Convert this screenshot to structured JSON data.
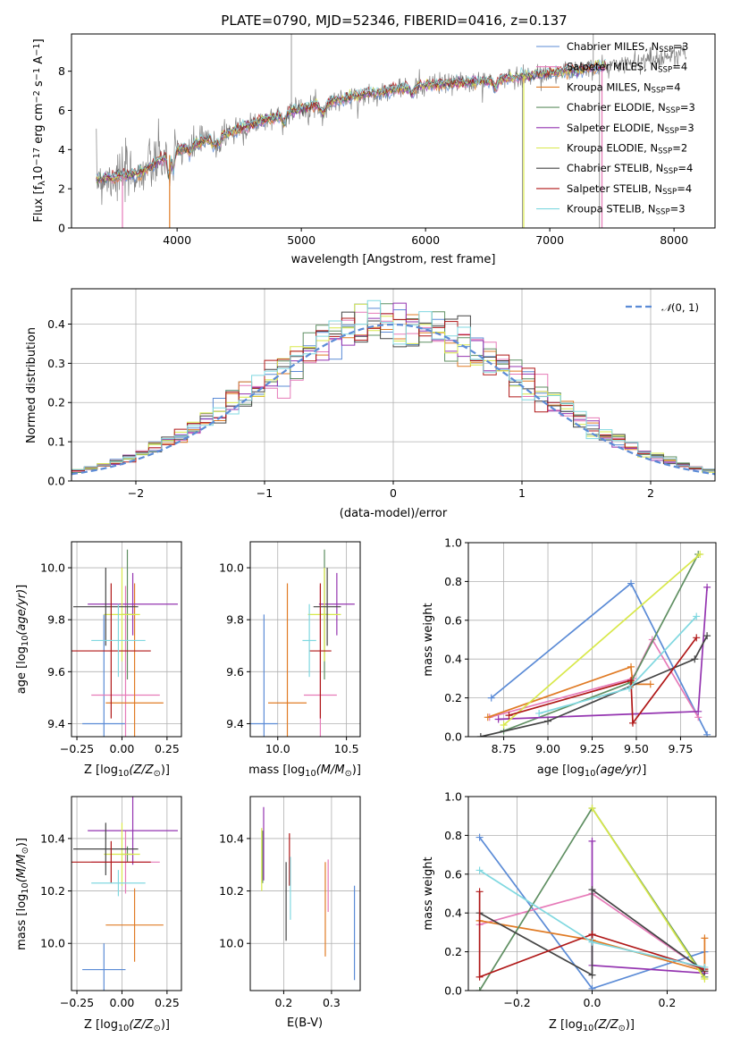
{
  "figure": {
    "title": "PLATE=0790, MJD=52346, FIBERID=0416, z=0.137"
  },
  "colors": {
    "Chabrier MILES": "#5b8bd6",
    "Salpeter MILES": "#e67ab8",
    "Kroupa MILES": "#e07b25",
    "Chabrier ELODIE": "#5f8f62",
    "Salpeter ELODIE": "#9434b0",
    "Kroupa ELODIE": "#d8e84a",
    "Chabrier STELIB": "#454545",
    "Salpeter STELIB": "#b01818",
    "Kroupa STELIB": "#80d8e0",
    "data": "#808080"
  },
  "chart_data": [
    {
      "id": "spectrum",
      "type": "line",
      "title": "PLATE=0790, MJD=52346, FIBERID=0416, z=0.137",
      "xlabel": "wavelength [Angstrom, rest frame]",
      "ylabel": "Flux [f_λ 10^-17 erg cm^-2 s^-1 A^-1]",
      "xlim": [
        3150,
        8330
      ],
      "ylim": [
        0,
        9.9
      ],
      "xticks": [
        4000,
        5000,
        6000,
        7000,
        8000
      ],
      "yticks": [
        0,
        2,
        4,
        6,
        8
      ],
      "legend": [
        "Chabrier MILES, N_SSP=3",
        "Salpeter MILES, N_SSP=4",
        "Kroupa MILES, N_SSP=4",
        "Chabrier ELODIE, N_SSP=3",
        "Salpeter ELODIE, N_SSP=3",
        "Kroupa ELODIE, N_SSP=2",
        "Chabrier STELIB, N_SSP=4",
        "Salpeter STELIB, N_SSP=4",
        "Kroupa STELIB, N_SSP=3"
      ],
      "legend_position": "upper-right",
      "continuum": {
        "x": [
          3350,
          3500,
          3700,
          3900,
          4100,
          4300,
          4600,
          5000,
          5500,
          6000,
          6500,
          7000,
          7500,
          8000,
          8100
        ],
        "y": [
          2.5,
          2.6,
          2.8,
          3.6,
          4.2,
          4.6,
          5.3,
          6.1,
          6.8,
          7.3,
          7.5,
          7.9,
          8.3,
          8.8,
          9.0
        ]
      }
    },
    {
      "id": "residuals",
      "type": "line",
      "xlabel": "(data-model)/error",
      "ylabel": "Normed distribution",
      "xlim": [
        -2.5,
        2.5
      ],
      "ylim": [
        0,
        0.49
      ],
      "xticks": [
        -2,
        -1,
        0,
        1,
        2
      ],
      "yticks": [
        0,
        0.1,
        0.2,
        0.3,
        0.4
      ],
      "legend": [
        "N(0,1)"
      ],
      "legend_position": "upper-right",
      "histogram_bin_width": 0.1
    },
    {
      "id": "age-vs-Z",
      "type": "scatter",
      "xlabel": "Z [log10(Z/Z⊙)]",
      "ylabel": "age [log10(age/yr)]",
      "xlim": [
        -0.28,
        0.33
      ],
      "ylim": [
        9.35,
        10.1
      ],
      "xticks": [
        -0.25,
        0.0,
        0.25
      ],
      "yticks": [
        9.4,
        9.6,
        9.8,
        10.0
      ],
      "points": [
        {
          "model": "Chabrier MILES",
          "x": -0.1,
          "xerr": 0.12,
          "y": 9.4,
          "yerr": 0.42
        },
        {
          "model": "Salpeter MILES",
          "x": 0.02,
          "xerr": 0.19,
          "y": 9.51,
          "yerr": 0.42
        },
        {
          "model": "Kroupa MILES",
          "x": 0.07,
          "xerr": 0.16,
          "y": 9.48,
          "yerr": 0.46
        },
        {
          "model": "Chabrier ELODIE",
          "x": 0.03,
          "xerr": 0.03,
          "y": 9.82,
          "yerr": 0.25
        },
        {
          "model": "Salpeter ELODIE",
          "x": 0.06,
          "xerr": 0.25,
          "y": 9.86,
          "yerr": 0.12
        },
        {
          "model": "Kroupa ELODIE",
          "x": 0.0,
          "xerr": 0.1,
          "y": 9.82,
          "yerr": 0.18
        },
        {
          "model": "Chabrier STELIB",
          "x": -0.09,
          "xerr": 0.18,
          "y": 9.85,
          "yerr": 0.15
        },
        {
          "model": "Salpeter STELIB",
          "x": -0.06,
          "xerr": 0.22,
          "y": 9.68,
          "yerr": 0.26
        },
        {
          "model": "Kroupa STELIB",
          "x": -0.02,
          "xerr": 0.15,
          "y": 9.72,
          "yerr": 0.14
        }
      ]
    },
    {
      "id": "age-vs-mass",
      "type": "scatter",
      "xlabel": "mass [log10(M/M⊙)]",
      "ylabel": "",
      "xlim": [
        9.8,
        10.6
      ],
      "ylim": [
        9.35,
        10.1
      ],
      "xticks": [
        10.0,
        10.5
      ],
      "yticks": [
        9.4,
        9.6,
        9.8,
        10.0
      ],
      "points": [
        {
          "model": "Chabrier MILES",
          "x": 9.9,
          "xerr": 0.1,
          "y": 9.4,
          "yerr": 0.42
        },
        {
          "model": "Salpeter MILES",
          "x": 10.31,
          "xerr": 0.12,
          "y": 9.51,
          "yerr": 0.42
        },
        {
          "model": "Kroupa MILES",
          "x": 10.07,
          "xerr": 0.14,
          "y": 9.48,
          "yerr": 0.46
        },
        {
          "model": "Chabrier ELODIE",
          "x": 10.34,
          "xerr": 0.03,
          "y": 9.82,
          "yerr": 0.25
        },
        {
          "model": "Salpeter ELODIE",
          "x": 10.43,
          "xerr": 0.13,
          "y": 9.86,
          "yerr": 0.12
        },
        {
          "model": "Kroupa ELODIE",
          "x": 10.34,
          "xerr": 0.12,
          "y": 9.82,
          "yerr": 0.18
        },
        {
          "model": "Chabrier STELIB",
          "x": 10.36,
          "xerr": 0.1,
          "y": 9.85,
          "yerr": 0.15
        },
        {
          "model": "Salpeter STELIB",
          "x": 10.31,
          "xerr": 0.08,
          "y": 9.68,
          "yerr": 0.26
        },
        {
          "model": "Kroupa STELIB",
          "x": 10.23,
          "xerr": 0.05,
          "y": 9.72,
          "yerr": 0.14
        }
      ]
    },
    {
      "id": "mass-vs-Z",
      "type": "scatter",
      "xlabel": "Z [log10(Z/Z⊙)]",
      "ylabel": "mass [log10(M/M⊙)]",
      "xlim": [
        -0.28,
        0.33
      ],
      "ylim": [
        9.82,
        10.56
      ],
      "xticks": [
        -0.25,
        0.0,
        0.25
      ],
      "yticks": [
        10.0,
        10.2,
        10.4
      ],
      "points": [
        {
          "model": "Chabrier MILES",
          "x": -0.1,
          "xerr": 0.12,
          "y": 9.9,
          "yerr": 0.1
        },
        {
          "model": "Salpeter MILES",
          "x": 0.02,
          "xerr": 0.19,
          "y": 10.31,
          "yerr": 0.12
        },
        {
          "model": "Kroupa MILES",
          "x": 0.07,
          "xerr": 0.16,
          "y": 10.07,
          "yerr": 0.14
        },
        {
          "model": "Chabrier ELODIE",
          "x": 0.03,
          "xerr": 0.03,
          "y": 10.34,
          "yerr": 0.03
        },
        {
          "model": "Salpeter ELODIE",
          "x": 0.06,
          "xerr": 0.25,
          "y": 10.43,
          "yerr": 0.13
        },
        {
          "model": "Kroupa ELODIE",
          "x": 0.0,
          "xerr": 0.1,
          "y": 10.34,
          "yerr": 0.12
        },
        {
          "model": "Chabrier STELIB",
          "x": -0.09,
          "xerr": 0.18,
          "y": 10.36,
          "yerr": 0.1
        },
        {
          "model": "Salpeter STELIB",
          "x": -0.06,
          "xerr": 0.22,
          "y": 10.31,
          "yerr": 0.08
        },
        {
          "model": "Kroupa STELIB",
          "x": -0.02,
          "xerr": 0.15,
          "y": 10.23,
          "yerr": 0.05
        }
      ]
    },
    {
      "id": "mass-vs-ebv",
      "type": "scatter",
      "xlabel": "E(B-V)",
      "ylabel": "",
      "xlim": [
        0.13,
        0.36
      ],
      "ylim": [
        9.82,
        10.56
      ],
      "xticks": [
        0.2,
        0.3
      ],
      "yticks": [
        10.0,
        10.2,
        10.4
      ],
      "points": [
        {
          "model": "Chabrier MILES",
          "x": 0.348,
          "y": 10.04,
          "yerr": 0.18
        },
        {
          "model": "Salpeter MILES",
          "x": 0.293,
          "y": 10.22,
          "yerr": 0.1
        },
        {
          "model": "Kroupa MILES",
          "x": 0.287,
          "y": 10.13,
          "yerr": 0.18
        },
        {
          "model": "Chabrier ELODIE",
          "x": 0.156,
          "y": 10.33,
          "yerr": 0.1
        },
        {
          "model": "Salpeter ELODIE",
          "x": 0.158,
          "y": 10.38,
          "yerr": 0.14
        },
        {
          "model": "Kroupa ELODIE",
          "x": 0.154,
          "y": 10.32,
          "yerr": 0.12
        },
        {
          "model": "Chabrier STELIB",
          "x": 0.205,
          "y": 10.16,
          "yerr": 0.15
        },
        {
          "model": "Salpeter STELIB",
          "x": 0.212,
          "y": 10.32,
          "yerr": 0.1
        },
        {
          "model": "Kroupa STELIB",
          "x": 0.214,
          "y": 10.21,
          "yerr": 0.12
        }
      ]
    },
    {
      "id": "weight-vs-age",
      "type": "line",
      "xlabel": "age [log10(age/yr)]",
      "ylabel": "mass weight",
      "xlim": [
        8.55,
        9.95
      ],
      "ylim": [
        0,
        1.0
      ],
      "xticks": [
        8.75,
        9.0,
        9.25,
        9.5,
        9.75
      ],
      "yticks": [
        0.0,
        0.2,
        0.4,
        0.6,
        0.8,
        1.0
      ],
      "series": [
        {
          "model": "Chabrier MILES",
          "x": [
            8.68,
            9.47,
            9.9
          ],
          "y": [
            0.2,
            0.79,
            0.01
          ]
        },
        {
          "model": "Salpeter MILES",
          "x": [
            8.67,
            9.48,
            9.59,
            9.85
          ],
          "y": [
            0.1,
            0.3,
            0.5,
            0.1
          ]
        },
        {
          "model": "Kroupa MILES",
          "x": [
            8.66,
            9.47,
            9.48,
            9.58
          ],
          "y": [
            0.1,
            0.36,
            0.27,
            0.27
          ]
        },
        {
          "model": "Chabrier ELODIE",
          "x": [
            8.75,
            9.47,
            9.85
          ],
          "y": [
            0.03,
            0.28,
            0.94
          ]
        },
        {
          "model": "Salpeter ELODIE",
          "x": [
            8.72,
            9.85,
            9.9
          ],
          "y": [
            0.09,
            0.13,
            0.77
          ]
        },
        {
          "model": "Kroupa ELODIE",
          "x": [
            8.75,
            9.86
          ],
          "y": [
            0.06,
            0.94
          ]
        },
        {
          "model": "Chabrier STELIB",
          "x": [
            8.62,
            9.0,
            9.83,
            9.9
          ],
          "y": [
            0.0,
            0.08,
            0.4,
            0.52
          ]
        },
        {
          "model": "Salpeter STELIB",
          "x": [
            8.78,
            9.47,
            9.48,
            9.84
          ],
          "y": [
            0.11,
            0.29,
            0.07,
            0.51
          ]
        },
        {
          "model": "Kroupa STELIB",
          "x": [
            8.95,
            9.46,
            9.84
          ],
          "y": [
            0.12,
            0.25,
            0.62
          ]
        }
      ]
    },
    {
      "id": "weight-vs-Z",
      "type": "line",
      "xlabel": "Z [log10(Z/Z⊙)]",
      "ylabel": "mass weight",
      "xlim": [
        -0.33,
        0.33
      ],
      "ylim": [
        0,
        1.0
      ],
      "xticks": [
        -0.2,
        0.0,
        0.2
      ],
      "yticks": [
        0.0,
        0.2,
        0.4,
        0.6,
        0.8,
        1.0
      ],
      "series": [
        {
          "model": "Chabrier MILES",
          "x": [
            -0.3,
            0.0,
            0.3
          ],
          "y": [
            0.79,
            0.01,
            0.2
          ]
        },
        {
          "model": "Salpeter MILES",
          "x": [
            -0.3,
            0.0,
            0.3
          ],
          "y": [
            0.34,
            0.5,
            0.1
          ]
        },
        {
          "model": "Kroupa MILES",
          "x": [
            -0.3,
            0.0,
            0.3,
            0.3
          ],
          "y": [
            0.36,
            0.26,
            0.1,
            0.27
          ]
        },
        {
          "model": "Chabrier ELODIE",
          "x": [
            -0.3,
            0.0,
            0.3
          ],
          "y": [
            0.0,
            0.94,
            0.07
          ]
        },
        {
          "model": "Salpeter ELODIE",
          "x": [
            0.0,
            0.0,
            0.3
          ],
          "y": [
            0.77,
            0.13,
            0.09
          ]
        },
        {
          "model": "Kroupa ELODIE",
          "x": [
            0.0,
            0.3
          ],
          "y": [
            0.94,
            0.06
          ]
        },
        {
          "model": "Chabrier STELIB",
          "x": [
            -0.3,
            0.0,
            0.0,
            0.3
          ],
          "y": [
            0.4,
            0.08,
            0.52,
            0.1
          ]
        },
        {
          "model": "Salpeter STELIB",
          "x": [
            -0.3,
            -0.3,
            0.0,
            0.3
          ],
          "y": [
            0.51,
            0.07,
            0.29,
            0.11
          ]
        },
        {
          "model": "Kroupa STELIB",
          "x": [
            -0.3,
            0.0,
            0.3
          ],
          "y": [
            0.62,
            0.25,
            0.12
          ]
        }
      ]
    }
  ]
}
